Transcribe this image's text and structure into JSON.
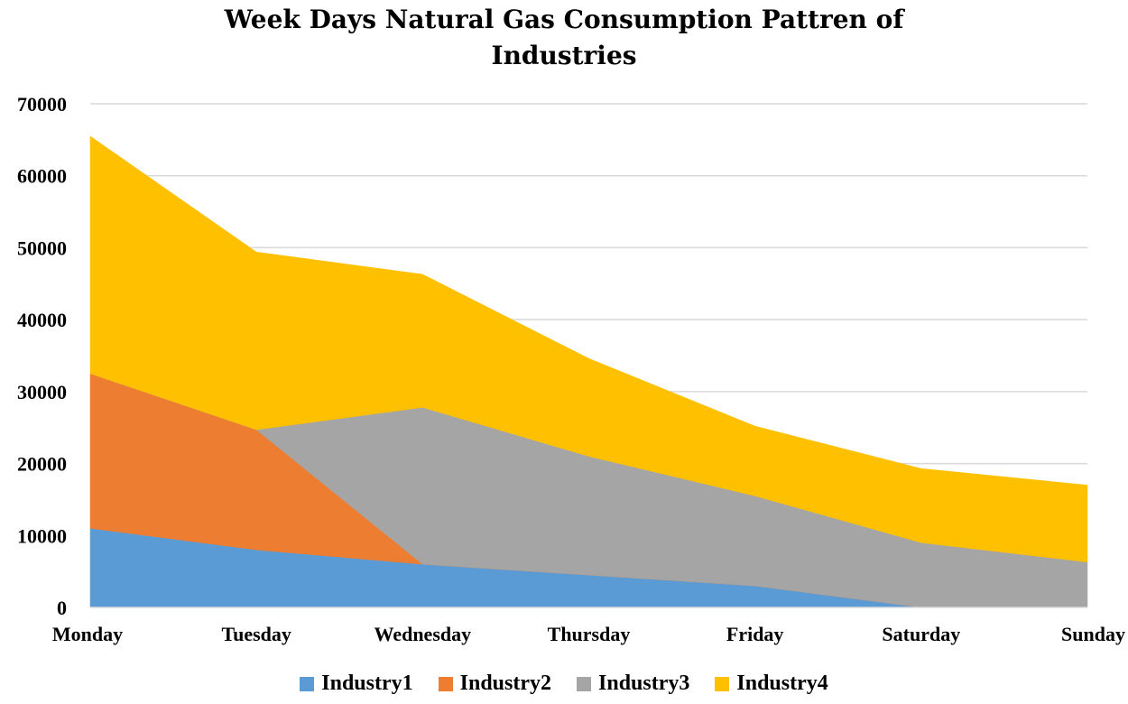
{
  "chart_data": {
    "type": "area",
    "stacked": true,
    "title_lines": [
      "Week Days Natural Gas Consumption Pattren of",
      "Industries"
    ],
    "categories": [
      "Monday",
      "Tuesday",
      "Wednesday",
      "Thursday",
      "Friday",
      "Saturday",
      "Sunday"
    ],
    "y_ticks": [
      "0",
      "10000",
      "20000",
      "30000",
      "40000",
      "50000",
      "60000",
      "70000"
    ],
    "ylim": [
      0,
      70000
    ],
    "grid": true,
    "legend_position": "bottom",
    "series": [
      {
        "name": "Industry1",
        "color": "#5b9bd5",
        "values": [
          11000,
          8000,
          6000,
          4500,
          3000,
          0,
          0
        ]
      },
      {
        "name": "Industry2",
        "color": "#ed7d31",
        "values": [
          21500,
          16700,
          0,
          0,
          0,
          0,
          0
        ]
      },
      {
        "name": "Industry3",
        "color": "#a5a5a5",
        "values": [
          0,
          0,
          21800,
          16500,
          12500,
          9000,
          6300
        ]
      },
      {
        "name": "Industry4",
        "color": "#ffc000",
        "values": [
          33000,
          24700,
          18500,
          13600,
          9700,
          10300,
          10700
        ]
      }
    ]
  }
}
